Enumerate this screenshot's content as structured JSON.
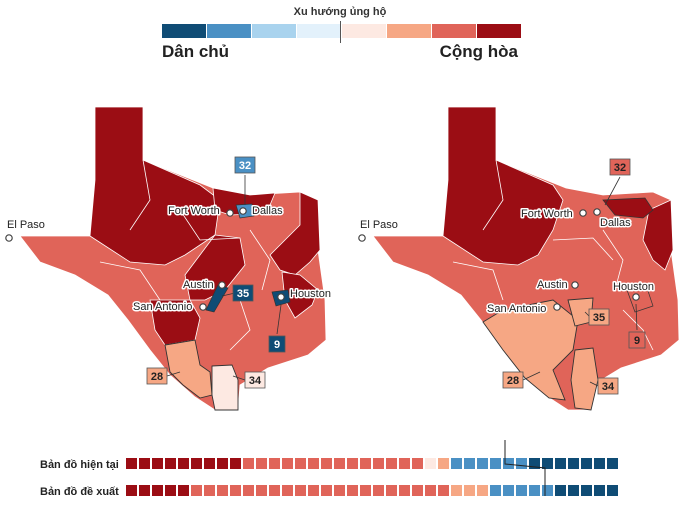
{
  "legend": {
    "title": "Xu hướng ủng hộ",
    "left_label": "Dân chủ",
    "right_label": "Cộng hòa",
    "colors": [
      "#0f4c75",
      "#4a90c4",
      "#a9d3ee",
      "#e3f1fb",
      "#fde9e2",
      "#f6a784",
      "#e06459",
      "#9b0d14"
    ]
  },
  "colors": {
    "strong_r": "#9b0d14",
    "mid_r": "#e06459",
    "lean_r": "#f6a784",
    "tilt_r": "#fde9e2",
    "strong_d": "#0f4c75",
    "mid_d": "#4a90c4",
    "border": "#ffffff",
    "outline": "#333333"
  },
  "maps": {
    "current": {
      "cities": {
        "el_paso": "El Paso",
        "fort_worth": "Fort Worth",
        "dallas": "Dallas",
        "austin": "Austin",
        "san_antonio": "San Antonio",
        "houston": "Houston"
      },
      "districts": [
        {
          "number": "32",
          "lean": "mid_d"
        },
        {
          "number": "35",
          "lean": "strong_d"
        },
        {
          "number": "9",
          "lean": "strong_d"
        },
        {
          "number": "28",
          "lean": "lean_r"
        },
        {
          "number": "34",
          "lean": "tilt_r"
        }
      ]
    },
    "proposed": {
      "cities": {
        "el_paso": "El Paso",
        "fort_worth": "Fort Worth",
        "dallas": "Dallas",
        "austin": "Austin",
        "san_antonio": "San Antonio",
        "houston": "Houston"
      },
      "districts": [
        {
          "number": "32",
          "lean": "mid_r"
        },
        {
          "number": "35",
          "lean": "lean_r"
        },
        {
          "number": "9",
          "lean": "mid_r"
        },
        {
          "number": "28",
          "lean": "lean_r"
        },
        {
          "number": "34",
          "lean": "lean_r"
        }
      ]
    }
  },
  "seat_bars": {
    "current": {
      "label": "Bản đồ hiện tại",
      "counts": {
        "strong_r": 9,
        "mid_r": 14,
        "tilt_r": 1,
        "lean_r": 1,
        "mid_d": 6,
        "strong_d": 7
      }
    },
    "proposed": {
      "label": "Bản đồ đề xuất",
      "counts": {
        "strong_r": 5,
        "mid_r": 20,
        "lean_r": 3,
        "mid_d": 5,
        "strong_d": 5
      }
    }
  }
}
